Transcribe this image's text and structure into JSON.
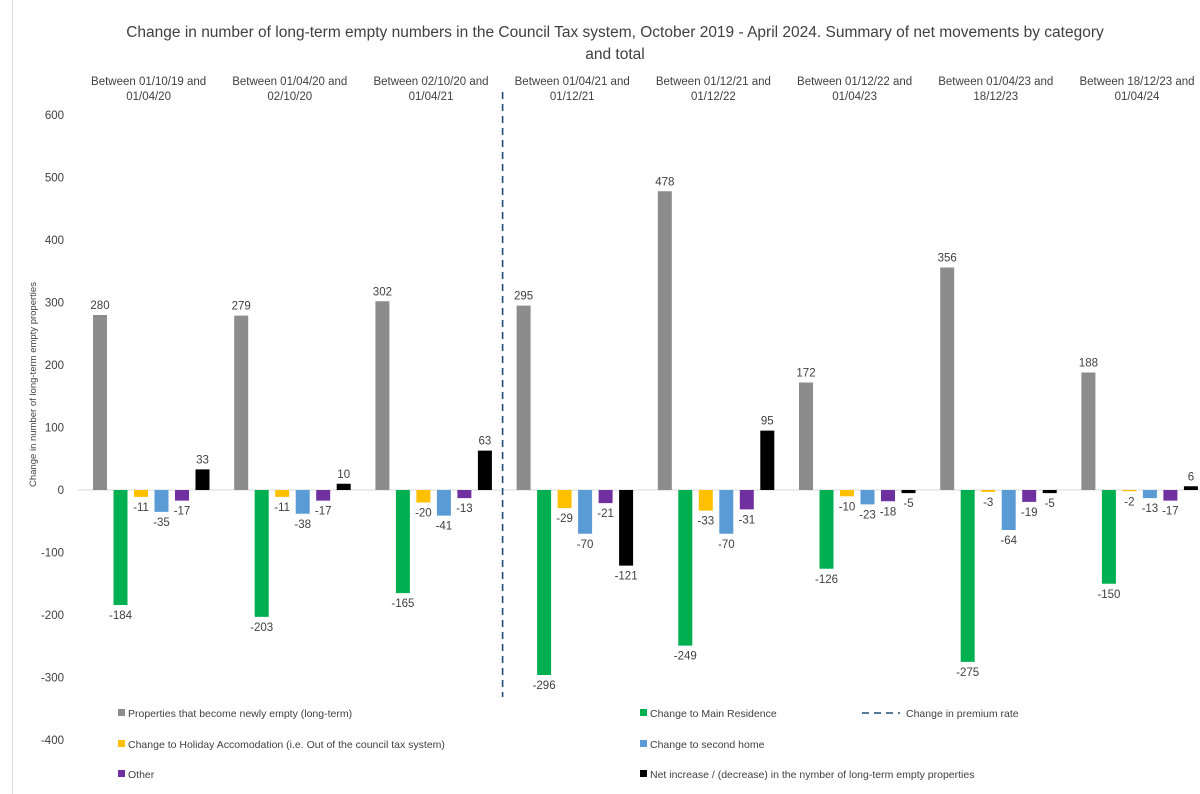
{
  "chart_data": {
    "type": "bar",
    "title": "Change in number of long-term empty numbers in the Council Tax system, October 2019 - April 2024. Summary of net movements by category and total",
    "ylabel": "Change in number of long-term empty properties",
    "xlabel": "",
    "ylim": [
      -400,
      600
    ],
    "ytick_step": 100,
    "grid": false,
    "legend_position": "bottom",
    "categories": [
      "Between 01/10/19 and 01/04/20",
      "Between 01/04/20 and 02/10/20",
      "Between 02/10/20 and 01/04/21",
      "Between 01/04/21 and 01/12/21",
      "Between 01/12/21 and 01/12/22",
      "Between 01/12/22 and 01/04/23",
      "Between 01/04/23 and 18/12/23",
      "Between 18/12/23 and 01/04/24"
    ],
    "category_lines": [
      [
        "Between 01/10/19 and",
        "01/04/20"
      ],
      [
        "Between 01/04/20 and",
        "02/10/20"
      ],
      [
        "Between 02/10/20 and",
        "01/04/21"
      ],
      [
        "Between 01/04/21 and",
        "01/12/21"
      ],
      [
        "Between 01/12/21 and",
        "01/12/22"
      ],
      [
        "Between 01/12/22 and",
        "01/04/23"
      ],
      [
        "Between 01/04/23 and",
        "18/12/23"
      ],
      [
        "Between 18/12/23 and",
        "01/04/24"
      ]
    ],
    "series": [
      {
        "name": "Properties that become newly empty (long-term)",
        "color": "#8c8c8c",
        "values": [
          280,
          279,
          302,
          295,
          478,
          172,
          356,
          188
        ]
      },
      {
        "name": "Change to Main Residence",
        "color": "#00b050",
        "values": [
          -184,
          -203,
          -165,
          -296,
          -249,
          -126,
          -275,
          -150
        ]
      },
      {
        "name": "Change to Holiday Accomodation (i.e. Out of the council tax system)",
        "color": "#ffc000",
        "values": [
          -11,
          -11,
          -20,
          -29,
          -33,
          -10,
          -3,
          -2
        ]
      },
      {
        "name": "Change to second home",
        "color": "#5b9bd5",
        "values": [
          -35,
          -38,
          -41,
          -70,
          -70,
          -23,
          -64,
          -13
        ]
      },
      {
        "name": "Other",
        "color": "#7030a0",
        "values": [
          -17,
          -17,
          -13,
          -21,
          -31,
          -18,
          -19,
          -17
        ]
      },
      {
        "name": "Net increase / (decrease) in the nymber of long-term empty properties",
        "color": "#000000",
        "values": [
          33,
          10,
          63,
          -121,
          95,
          -5,
          -5,
          6
        ]
      }
    ],
    "marker_line": {
      "name": "Change in premium rate",
      "color": "#1f4e79",
      "after_category_index": 2
    },
    "legend_rows": [
      [
        0,
        1,
        "marker"
      ],
      [
        2,
        3
      ],
      [
        4,
        5
      ]
    ]
  }
}
